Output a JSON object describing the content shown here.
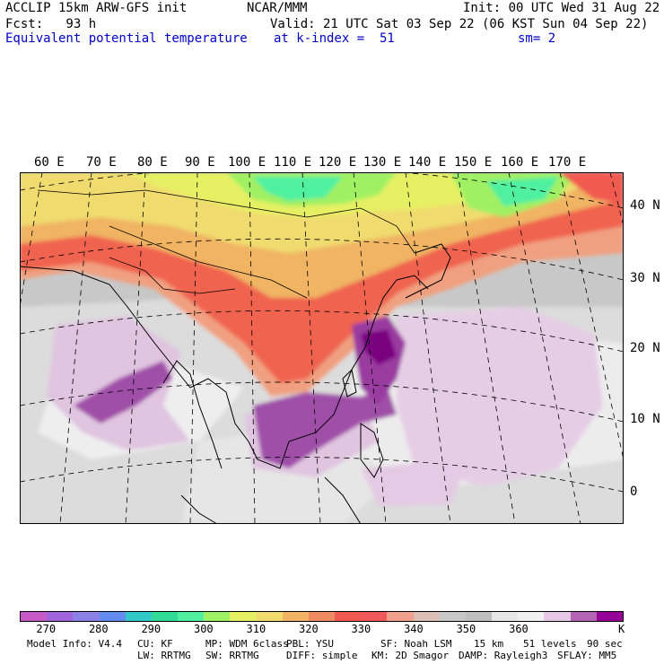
{
  "header": {
    "model_line": "ACCLIP 15km ARW-GFS init",
    "center": "NCAR/MMM",
    "init": "Init: 00 UTC Wed 31 Aug 22",
    "fcst": "Fcst:   93 h",
    "valid": "Valid: 21 UTC Sat 03 Sep 22 (06 KST Sun 04 Sep 22)",
    "field": "Equivalent potential temperature",
    "level": "at k-index =  51",
    "smoothing": "sm= 2"
  },
  "map": {
    "lon_labels": [
      "60 E",
      "70 E",
      "80 E",
      "90 E",
      "100 E",
      "110 E",
      "120 E",
      "130 E",
      "140 E",
      "150 E",
      "160 E",
      "170 E"
    ],
    "lat_labels": [
      "40 N",
      "30 N",
      "20 N",
      "10 N",
      "0"
    ]
  },
  "colorbar": {
    "colors": [
      "#c85ac8",
      "#a064dc",
      "#8c82e6",
      "#648cf0",
      "#32c8c8",
      "#32dc96",
      "#50f0a0",
      "#a0f064",
      "#e6f064",
      "#f0dc6e",
      "#f0b464",
      "#f08c64",
      "#f05a50",
      "#f05a5a",
      "#f0a08c",
      "#dcbeb4",
      "#c8c8c8",
      "#bebebe",
      "#e6e6e6",
      "#f0f0f0",
      "#e6c8e6",
      "#b464b4",
      "#960096"
    ],
    "ticks": [
      "270",
      "280",
      "290",
      "300",
      "310",
      "320",
      "330",
      "340",
      "350",
      "360"
    ],
    "unit": "K"
  },
  "model_info": {
    "line1": [
      "Model Info: V4.4",
      "CU: KF",
      "MP: WDM 6class",
      "PBL: YSU",
      "SF: Noah LSM",
      "15 km",
      "51 levels",
      "90 sec"
    ],
    "line2": [
      "LW: RRTMG",
      "SW: RRTMG",
      "DIFF: simple",
      "KM: 2D Smagor",
      "DAMP: Rayleigh3",
      "SFLAY: MM5"
    ]
  }
}
